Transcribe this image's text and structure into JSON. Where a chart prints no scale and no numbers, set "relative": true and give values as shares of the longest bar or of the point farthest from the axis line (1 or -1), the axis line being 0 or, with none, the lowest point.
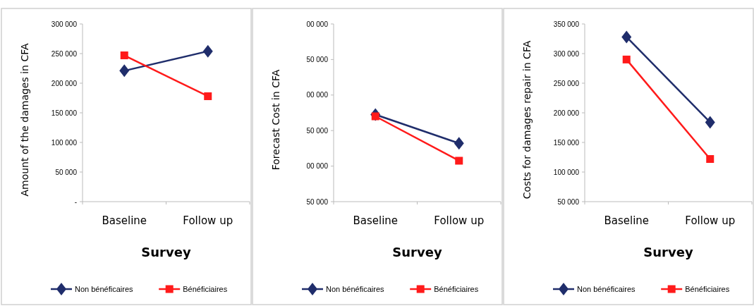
{
  "chart_data": [
    {
      "type": "line",
      "categories": [
        "Baseline",
        "Follow up"
      ],
      "xlabel": "Survey",
      "ylabel": "Amount of the damages in CFA",
      "ylim": [
        0,
        300000
      ],
      "yticks": [
        {
          "value": 0,
          "label": "-"
        },
        {
          "value": 50000,
          "label": "50 000"
        },
        {
          "value": 100000,
          "label": "100 000"
        },
        {
          "value": 150000,
          "label": "150 000"
        },
        {
          "value": 200000,
          "label": "200 000"
        },
        {
          "value": 250000,
          "label": "250 000"
        },
        {
          "value": 300000,
          "label": "300 000"
        }
      ],
      "grid": false,
      "legend": "bottom",
      "series": [
        {
          "name": "Non bénéficaires",
          "color": "#1f2d6b",
          "marker": "diamond",
          "values": [
            221000,
            254000
          ]
        },
        {
          "name": "Bénéficiaires",
          "color": "#ff1a1a",
          "marker": "square",
          "values": [
            247000,
            178000
          ]
        }
      ]
    },
    {
      "type": "line",
      "categories": [
        "Baseline",
        "Follow up"
      ],
      "xlabel": "Survey",
      "ylabel": "Forecast Cost in CFA",
      "relative": true,
      "annotations": [
        "50 000",
        "00 000",
        "50 000",
        "00 000",
        "50 000",
        "00 000"
      ],
      "grid": false,
      "legend": "bottom",
      "series": [
        {
          "name": "Non bénéficaires",
          "color": "#1f2d6b",
          "marker": "diamond",
          "values": [
            1,
            0.67
          ]
        },
        {
          "name": "Bénéficiaires",
          "color": "#ff1a1a",
          "marker": "square",
          "values": [
            0.98,
            0.47
          ]
        }
      ]
    },
    {
      "type": "line",
      "categories": [
        "Baseline",
        "Follow up"
      ],
      "xlabel": "Survey",
      "ylabel": "Costs for damages repair in CFA",
      "ylim": [
        50000,
        350000
      ],
      "yticks": [
        {
          "value": 50000,
          "label": "50 000"
        },
        {
          "value": 100000,
          "label": "100 000"
        },
        {
          "value": 150000,
          "label": "150 000"
        },
        {
          "value": 200000,
          "label": "200 000"
        },
        {
          "value": 250000,
          "label": "250 000"
        },
        {
          "value": 300000,
          "label": "300 000"
        },
        {
          "value": 350000,
          "label": "350 000"
        }
      ],
      "grid": false,
      "legend": "bottom",
      "series": [
        {
          "name": "Non bénéficaires",
          "color": "#1f2d6b",
          "marker": "diamond",
          "values": [
            328000,
            184000
          ]
        },
        {
          "name": "Bénéficiaires",
          "color": "#ff1a1a",
          "marker": "square",
          "values": [
            290000,
            122000
          ]
        }
      ]
    }
  ]
}
